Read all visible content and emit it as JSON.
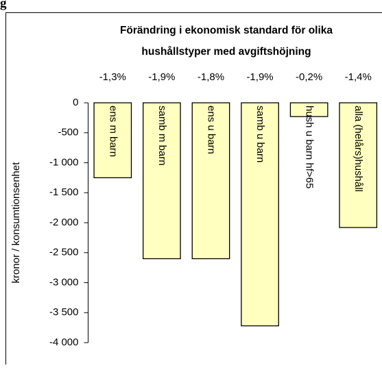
{
  "page_heading": "g",
  "chart_data": {
    "type": "bar",
    "title": [
      "Förändring i ekonomisk standard för olika",
      "hushållstyper med avgiftshöjning"
    ],
    "ylabel": "kronor / konsumtionsenhet",
    "categories": [
      "ens m barn",
      "samb m barn",
      "ens u barn",
      "samb u barn",
      "hush u barn hf>65",
      "alla (helårs)hushåll"
    ],
    "annotations": [
      "-1,3%",
      "-1,9%",
      "-1,8%",
      "-1,9%",
      "-0,2%",
      "-1,4%"
    ],
    "values": [
      -1250,
      -2600,
      -2600,
      -3720,
      -230,
      -2080
    ],
    "color": "#ffffc0",
    "ylim": [
      -4000,
      0
    ],
    "yticks": [
      {
        "value": 0,
        "label": "0"
      },
      {
        "value": -500,
        "label": "-500"
      },
      {
        "value": -1000,
        "label": "-1 000"
      },
      {
        "value": -1500,
        "label": "-1 500"
      },
      {
        "value": -2000,
        "label": "-2 000"
      },
      {
        "value": -2500,
        "label": "-2 500"
      },
      {
        "value": -3000,
        "label": "-3 000"
      },
      {
        "value": -3500,
        "label": "-3 500"
      },
      {
        "value": -4000,
        "label": "-4 000"
      }
    ]
  }
}
